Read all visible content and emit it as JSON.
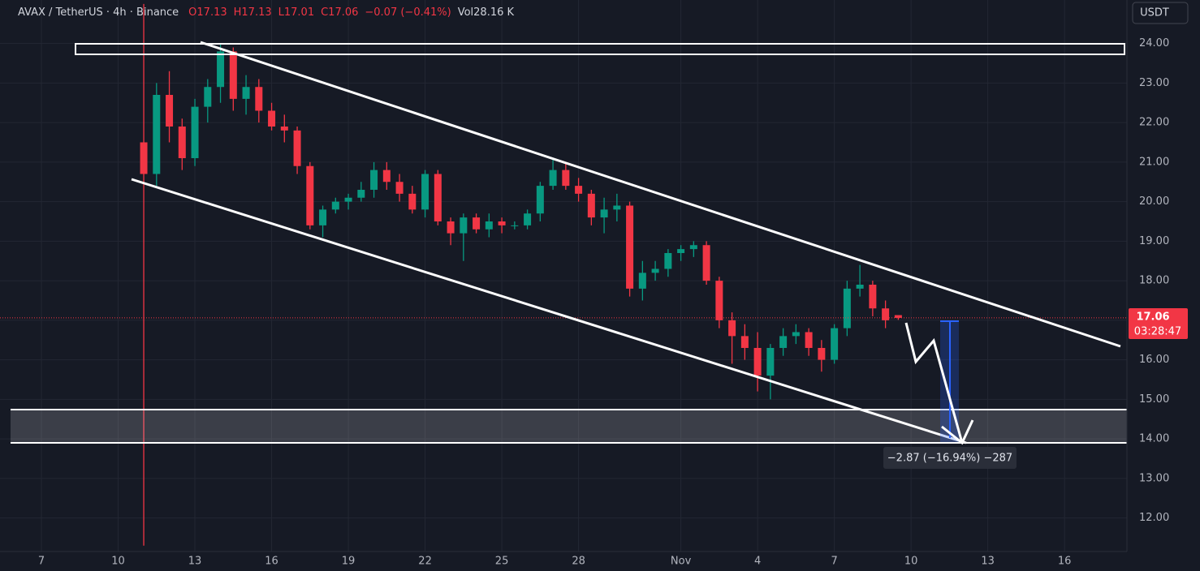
{
  "chart_data": {
    "type": "candlestick",
    "symbol": "AVAX / TetherUS · 4h · Binance",
    "legend_open": "O17.13",
    "legend_high": "H17.13",
    "legend_low": "L17.01",
    "legend_close": "C17.06",
    "legend_change": "−0.07 (−0.41%)",
    "legend_volume": "Vol28.16 K",
    "currency": "USDT",
    "last_price_label": "17.06",
    "countdown": "03:28:47",
    "measure_label": "−2.87 (−16.94%) −287",
    "up_color": "#089981",
    "down_color": "#f23645",
    "grid": true,
    "x": [
      11,
      11.5,
      12,
      12.5,
      13,
      13.5,
      14,
      14.5,
      15,
      15.5,
      16,
      16.5,
      17,
      17.5,
      18,
      18.5,
      19,
      19.5,
      20,
      20.5,
      21,
      21.5,
      22,
      22.5,
      23,
      23.5,
      24,
      24.5,
      25,
      25.5,
      26,
      26.5,
      27,
      27.5,
      28,
      28.5,
      29,
      29.5,
      30,
      30.5,
      31,
      31.5,
      32,
      32.5,
      33,
      33.5,
      34,
      34.5,
      35,
      35.5,
      36,
      36.5,
      37,
      37.5,
      38,
      38.5,
      39,
      39.5,
      40,
      40.5
    ],
    "open": [
      21.5,
      20.7,
      22.7,
      21.9,
      21.1,
      22.4,
      22.9,
      23.8,
      22.6,
      22.9,
      22.3,
      21.9,
      21.8,
      20.9,
      19.4,
      19.8,
      20.0,
      20.1,
      20.3,
      20.8,
      20.5,
      20.2,
      19.8,
      20.7,
      19.5,
      19.2,
      19.6,
      19.3,
      19.5,
      19.4,
      19.4,
      19.7,
      20.4,
      20.8,
      20.4,
      20.2,
      19.6,
      19.8,
      19.9,
      17.8,
      18.2,
      18.3,
      18.7,
      18.8,
      18.9,
      18.0,
      17.0,
      16.6,
      16.3,
      15.6,
      16.3,
      16.6,
      16.7,
      16.3,
      16.0,
      16.8,
      17.8,
      17.9,
      17.3,
      17.13
    ],
    "high": [
      25.0,
      23.0,
      23.3,
      22.1,
      22.6,
      23.1,
      24.0,
      23.9,
      23.2,
      23.1,
      22.5,
      22.2,
      21.9,
      21.0,
      19.9,
      20.1,
      20.2,
      20.5,
      21.0,
      21.0,
      20.7,
      20.4,
      20.8,
      20.8,
      19.6,
      19.7,
      19.7,
      19.7,
      19.6,
      19.5,
      19.8,
      20.5,
      21.1,
      21.0,
      20.6,
      20.3,
      20.1,
      20.2,
      20.0,
      18.5,
      18.5,
      18.8,
      18.9,
      19.0,
      19.0,
      18.1,
      17.2,
      16.9,
      16.7,
      16.4,
      16.8,
      16.9,
      16.8,
      16.5,
      16.9,
      18.0,
      18.4,
      18.0,
      17.5,
      17.13
    ],
    "low": [
      11.3,
      20.4,
      21.5,
      20.8,
      20.9,
      22.0,
      22.5,
      22.3,
      22.2,
      22.0,
      21.8,
      21.5,
      20.7,
      19.3,
      19.1,
      19.7,
      19.8,
      20.0,
      20.1,
      20.3,
      20.0,
      19.7,
      19.6,
      19.4,
      18.9,
      18.5,
      19.2,
      19.1,
      19.2,
      19.3,
      19.3,
      19.5,
      20.3,
      20.3,
      20.0,
      19.4,
      19.2,
      19.5,
      17.6,
      17.5,
      18.0,
      18.1,
      18.5,
      18.6,
      17.9,
      16.8,
      15.9,
      16.0,
      15.2,
      15.0,
      16.1,
      16.4,
      16.1,
      15.7,
      15.9,
      16.6,
      17.6,
      17.1,
      16.8,
      17.01
    ],
    "close": [
      20.7,
      22.7,
      21.9,
      21.1,
      22.4,
      22.9,
      23.8,
      22.6,
      22.9,
      22.3,
      21.9,
      21.8,
      20.9,
      19.4,
      19.8,
      20.0,
      20.1,
      20.3,
      20.8,
      20.5,
      20.2,
      19.8,
      20.7,
      19.5,
      19.2,
      19.6,
      19.3,
      19.5,
      19.4,
      19.4,
      19.7,
      20.4,
      20.8,
      20.4,
      20.2,
      19.6,
      19.8,
      19.9,
      17.8,
      18.2,
      18.3,
      18.7,
      18.8,
      18.9,
      18.0,
      17.0,
      16.6,
      16.3,
      15.6,
      16.3,
      16.6,
      16.7,
      16.3,
      16.0,
      16.8,
      17.8,
      17.9,
      17.3,
      17.0,
      17.06
    ],
    "xlim": [
      5.38,
      49.44
    ],
    "xticks": [
      7,
      10,
      13,
      16,
      19,
      22,
      25,
      28,
      {
        "value": 32,
        "label": "Nov"
      },
      {
        "value": 35,
        "label": "4"
      },
      {
        "value": 38,
        "label": "7"
      },
      {
        "value": 41,
        "label": "10"
      },
      {
        "value": 44,
        "label": "13"
      },
      {
        "value": 47,
        "label": "16"
      }
    ],
    "ylim": [
      11.2,
      25.1
    ],
    "yticks": [
      {
        "value": 12,
        "label": "12.00"
      },
      {
        "value": 13,
        "label": "13.00"
      },
      {
        "value": 14,
        "label": "14.00"
      },
      {
        "value": 15,
        "label": "15.00"
      },
      {
        "value": 16,
        "label": "16.00"
      },
      {
        "value": 17,
        "label": "17.00"
      },
      {
        "value": 18,
        "label": "18.00"
      },
      {
        "value": 19,
        "label": "19.00"
      },
      {
        "value": 20,
        "label": "20.00"
      },
      {
        "value": 21,
        "label": "21.00"
      },
      {
        "value": 22,
        "label": "22.00"
      },
      {
        "value": 23,
        "label": "23.00"
      },
      {
        "value": 24,
        "label": "24.00"
      }
    ]
  }
}
